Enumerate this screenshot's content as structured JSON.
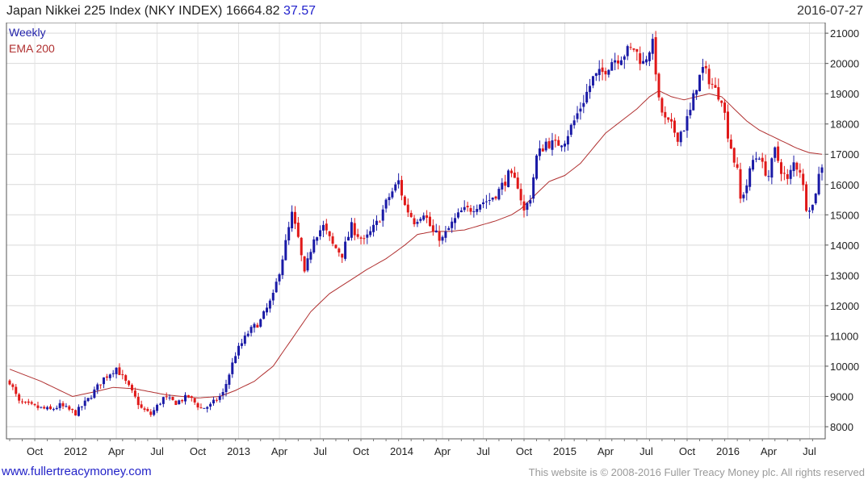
{
  "header": {
    "title": "Japan Nikkei 225 Index (NKY INDEX)",
    "last": "16664.82",
    "change": "37.57",
    "date": "2016-07-27"
  },
  "footer": {
    "url": "www.fullertreacymoney.com",
    "copyright": "This website is © 2008-2016 Fuller Treacy Money plc. All rights reserved"
  },
  "chart_data": {
    "type": "candlestick",
    "title": "Japan Nikkei 225 Index (NKY INDEX)",
    "legend": [
      {
        "name": "Weekly",
        "color": "#2222aa"
      },
      {
        "name": "EMA 200",
        "color": "#b03030"
      }
    ],
    "colors": {
      "up": "#1a1aa6",
      "down": "#e01818",
      "ema": "#b03030"
    },
    "ylim": [
      7600,
      21350
    ],
    "yticks": [
      8000,
      9000,
      10000,
      11000,
      12000,
      13000,
      14000,
      15000,
      16000,
      17000,
      18000,
      19000,
      20000,
      21000
    ],
    "xticks": [
      {
        "label": "Oct",
        "week": 8
      },
      {
        "label": "2012",
        "week": 21
      },
      {
        "label": "Apr",
        "week": 34
      },
      {
        "label": "Jul",
        "week": 47
      },
      {
        "label": "Oct",
        "week": 60
      },
      {
        "label": "2013",
        "week": 73
      },
      {
        "label": "Apr",
        "week": 86
      },
      {
        "label": "Jul",
        "week": 99
      },
      {
        "label": "Oct",
        "week": 112
      },
      {
        "label": "2014",
        "week": 125
      },
      {
        "label": "Apr",
        "week": 138
      },
      {
        "label": "Jul",
        "week": 151
      },
      {
        "label": "Oct",
        "week": 164
      },
      {
        "label": "2015",
        "week": 177
      },
      {
        "label": "Apr",
        "week": 190
      },
      {
        "label": "Jul",
        "week": 203
      },
      {
        "label": "Oct",
        "week": 216
      },
      {
        "label": "2016",
        "week": 229
      },
      {
        "label": "Apr",
        "week": 242
      },
      {
        "label": "Jul",
        "week": 255
      }
    ],
    "weeks": 260,
    "close_path": [
      [
        0,
        9500
      ],
      [
        3,
        8800
      ],
      [
        8,
        8650
      ],
      [
        13,
        8550
      ],
      [
        16,
        8700
      ],
      [
        21,
        8450
      ],
      [
        25,
        8900
      ],
      [
        30,
        9600
      ],
      [
        34,
        9950
      ],
      [
        38,
        9300
      ],
      [
        42,
        8600
      ],
      [
        45,
        8400
      ],
      [
        49,
        8950
      ],
      [
        53,
        8800
      ],
      [
        57,
        9000
      ],
      [
        61,
        8600
      ],
      [
        64,
        8700
      ],
      [
        68,
        9100
      ],
      [
        72,
        10400
      ],
      [
        76,
        11100
      ],
      [
        80,
        11500
      ],
      [
        84,
        12300
      ],
      [
        87,
        13600
      ],
      [
        90,
        15000
      ],
      [
        92,
        14200
      ],
      [
        94,
        13000
      ],
      [
        97,
        14300
      ],
      [
        100,
        14600
      ],
      [
        103,
        14000
      ],
      [
        106,
        13700
      ],
      [
        109,
        14600
      ],
      [
        113,
        14100
      ],
      [
        117,
        14700
      ],
      [
        121,
        15600
      ],
      [
        124,
        16100
      ],
      [
        126,
        15300
      ],
      [
        129,
        14800
      ],
      [
        132,
        15100
      ],
      [
        135,
        14400
      ],
      [
        138,
        14200
      ],
      [
        141,
        14700
      ],
      [
        144,
        15100
      ],
      [
        147,
        15200
      ],
      [
        150,
        15400
      ],
      [
        153,
        15500
      ],
      [
        156,
        15800
      ],
      [
        159,
        16300
      ],
      [
        162,
        16000
      ],
      [
        164,
        15100
      ],
      [
        166,
        15600
      ],
      [
        168,
        16900
      ],
      [
        171,
        17400
      ],
      [
        174,
        17300
      ],
      [
        177,
        17500
      ],
      [
        180,
        18100
      ],
      [
        183,
        18800
      ],
      [
        186,
        19500
      ],
      [
        189,
        19700
      ],
      [
        192,
        20100
      ],
      [
        194,
        20200
      ],
      [
        197,
        20400
      ],
      [
        199,
        20500
      ],
      [
        202,
        20000
      ],
      [
        204,
        20500
      ],
      [
        205,
        20600
      ],
      [
        206,
        19800
      ],
      [
        207,
        18700
      ],
      [
        209,
        18100
      ],
      [
        211,
        17900
      ],
      [
        213,
        17600
      ],
      [
        215,
        17900
      ],
      [
        217,
        18400
      ],
      [
        219,
        19300
      ],
      [
        221,
        19800
      ],
      [
        223,
        19500
      ],
      [
        225,
        19100
      ],
      [
        227,
        18900
      ],
      [
        229,
        17700
      ],
      [
        231,
        16800
      ],
      [
        232,
        16400
      ],
      [
        233,
        15500
      ],
      [
        235,
        16000
      ],
      [
        237,
        16800
      ],
      [
        239,
        17000
      ],
      [
        240,
        16600
      ],
      [
        242,
        16300
      ],
      [
        244,
        17100
      ],
      [
        246,
        16500
      ],
      [
        248,
        16100
      ],
      [
        250,
        16700
      ],
      [
        252,
        16500
      ],
      [
        254,
        15300
      ],
      [
        256,
        15300
      ],
      [
        258,
        16300
      ],
      [
        259,
        16665
      ]
    ],
    "ema_path": [
      [
        0,
        9900
      ],
      [
        10,
        9500
      ],
      [
        20,
        9000
      ],
      [
        27,
        9150
      ],
      [
        33,
        9300
      ],
      [
        40,
        9250
      ],
      [
        50,
        9050
      ],
      [
        60,
        8950
      ],
      [
        67,
        9000
      ],
      [
        72,
        9200
      ],
      [
        78,
        9500
      ],
      [
        84,
        10000
      ],
      [
        90,
        10900
      ],
      [
        96,
        11800
      ],
      [
        102,
        12400
      ],
      [
        108,
        12800
      ],
      [
        114,
        13200
      ],
      [
        120,
        13550
      ],
      [
        126,
        14000
      ],
      [
        130,
        14350
      ],
      [
        135,
        14450
      ],
      [
        140,
        14450
      ],
      [
        145,
        14500
      ],
      [
        150,
        14650
      ],
      [
        155,
        14800
      ],
      [
        160,
        15000
      ],
      [
        163,
        15200
      ],
      [
        167,
        15600
      ],
      [
        172,
        16100
      ],
      [
        177,
        16300
      ],
      [
        182,
        16700
      ],
      [
        186,
        17200
      ],
      [
        190,
        17700
      ],
      [
        195,
        18100
      ],
      [
        200,
        18500
      ],
      [
        204,
        18900
      ],
      [
        207,
        19100
      ],
      [
        211,
        18900
      ],
      [
        215,
        18800
      ],
      [
        219,
        18900
      ],
      [
        223,
        19000
      ],
      [
        227,
        18900
      ],
      [
        231,
        18500
      ],
      [
        235,
        18100
      ],
      [
        239,
        17800
      ],
      [
        243,
        17600
      ],
      [
        247,
        17400
      ],
      [
        251,
        17200
      ],
      [
        255,
        17050
      ],
      [
        259,
        17000
      ]
    ]
  }
}
